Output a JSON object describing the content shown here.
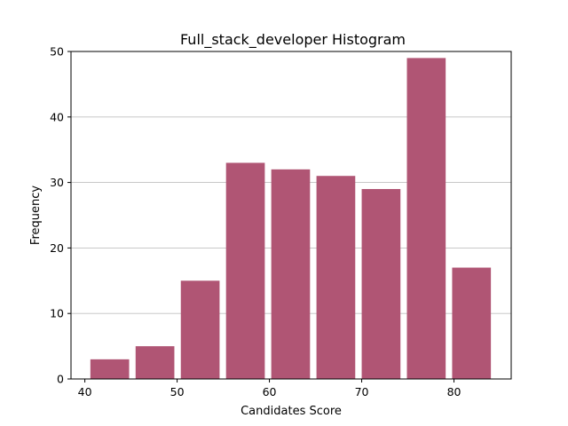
{
  "chart_data": {
    "type": "bar",
    "title": "Full_stack_developer Histogram",
    "xlabel": "Candidates Score",
    "ylabel": "Frequency",
    "bins": [
      {
        "start": 40.6,
        "end": 44.8,
        "value": 3
      },
      {
        "start": 45.5,
        "end": 49.7,
        "value": 5
      },
      {
        "start": 50.4,
        "end": 54.6,
        "value": 15
      },
      {
        "start": 55.3,
        "end": 59.5,
        "value": 33
      },
      {
        "start": 60.2,
        "end": 64.4,
        "value": 32
      },
      {
        "start": 65.1,
        "end": 69.3,
        "value": 31
      },
      {
        "start": 70.0,
        "end": 74.2,
        "value": 29
      },
      {
        "start": 74.9,
        "end": 79.1,
        "value": 49
      },
      {
        "start": 79.8,
        "end": 84.0,
        "value": 17
      }
    ],
    "xlim": [
      38.5,
      86.2
    ],
    "ylim": [
      0,
      50
    ],
    "xticks": [
      40,
      50,
      60,
      70,
      80
    ],
    "yticks": [
      0,
      10,
      20,
      30,
      40,
      50
    ],
    "grid": "y",
    "bar_color": "#b05574"
  }
}
